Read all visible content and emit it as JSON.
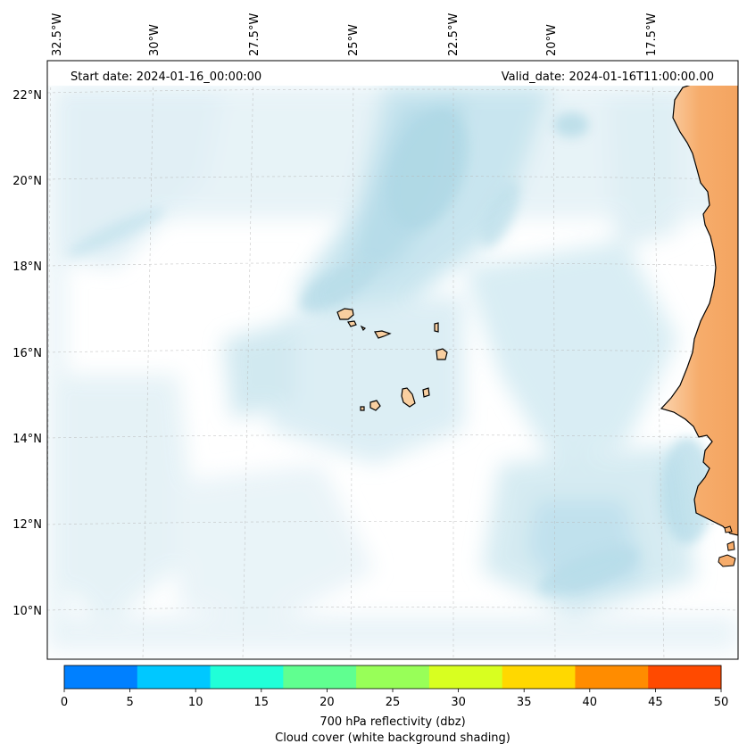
{
  "header": {
    "start_date": "Start date: 2024-01-16_00:00:00",
    "valid_date": "Valid_date: 2024-01-16T11:00:00.00"
  },
  "map": {
    "lon_ticks": [
      "32.5°W",
      "30°W",
      "27.5°W",
      "25°W",
      "22.5°W",
      "20°W",
      "17.5°W"
    ],
    "lat_ticks": [
      "22°N",
      "20°N",
      "18°N",
      "16°N",
      "14°N",
      "12°N",
      "10°N"
    ],
    "land_color": "#f4a460",
    "island_color": "#f9cfa0",
    "cloud_color": "#add8e6"
  },
  "colorbar": {
    "ticks": [
      "0",
      "5",
      "10",
      "15",
      "20",
      "25",
      "30",
      "35",
      "40",
      "45",
      "50"
    ],
    "colors": [
      "#0080ff",
      "#00c8ff",
      "#20ffd8",
      "#60ff90",
      "#98ff58",
      "#d8ff20",
      "#ffd800",
      "#ff8c00",
      "#ff4a00"
    ],
    "label_line1": "700 hPa reflectivity (dbz)",
    "label_line2": "Cloud cover (white background shading)"
  }
}
